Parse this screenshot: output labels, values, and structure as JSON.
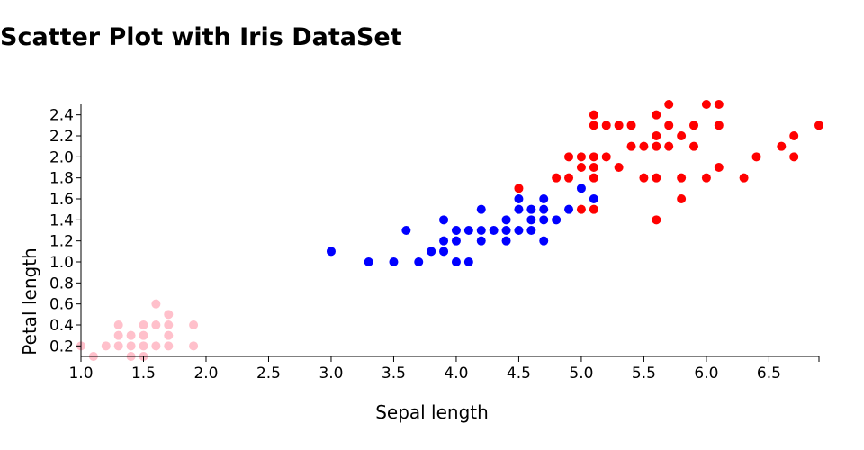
{
  "chart_data": {
    "type": "scatter",
    "title": "Scatter Plot with Iris DataSet",
    "xlabel": "Sepal length",
    "ylabel": "Petal length",
    "xlim": [
      1.0,
      6.9
    ],
    "ylim": [
      0.1,
      2.5
    ],
    "xticks": [
      "1.0",
      "1.5",
      "2.0",
      "2.5",
      "3.0",
      "3.5",
      "4.0",
      "4.5",
      "5.0",
      "5.5",
      "6.0",
      "6.5"
    ],
    "yticks": [
      "0.2",
      "0.4",
      "0.6",
      "0.8",
      "1.0",
      "1.2",
      "1.4",
      "1.6",
      "1.8",
      "2.0",
      "2.2",
      "2.4"
    ],
    "grid": false,
    "legend": "none",
    "series": [
      {
        "color": "#ffc0cb",
        "points": [
          [
            1.0,
            0.2
          ],
          [
            1.1,
            0.1
          ],
          [
            1.2,
            0.2
          ],
          [
            1.3,
            0.2
          ],
          [
            1.3,
            0.3
          ],
          [
            1.3,
            0.4
          ],
          [
            1.4,
            0.1
          ],
          [
            1.4,
            0.2
          ],
          [
            1.4,
            0.3
          ],
          [
            1.5,
            0.1
          ],
          [
            1.5,
            0.2
          ],
          [
            1.5,
            0.3
          ],
          [
            1.5,
            0.4
          ],
          [
            1.6,
            0.2
          ],
          [
            1.6,
            0.4
          ],
          [
            1.6,
            0.6
          ],
          [
            1.7,
            0.2
          ],
          [
            1.7,
            0.3
          ],
          [
            1.7,
            0.4
          ],
          [
            1.7,
            0.5
          ],
          [
            1.9,
            0.2
          ],
          [
            1.9,
            0.4
          ]
        ]
      },
      {
        "color": "#0000ff",
        "points": [
          [
            3.0,
            1.1
          ],
          [
            3.3,
            1.0
          ],
          [
            3.5,
            1.0
          ],
          [
            3.6,
            1.3
          ],
          [
            3.7,
            1.0
          ],
          [
            3.8,
            1.1
          ],
          [
            3.9,
            1.1
          ],
          [
            3.9,
            1.2
          ],
          [
            3.9,
            1.4
          ],
          [
            4.0,
            1.0
          ],
          [
            4.0,
            1.2
          ],
          [
            4.0,
            1.3
          ],
          [
            4.1,
            1.0
          ],
          [
            4.1,
            1.3
          ],
          [
            4.2,
            1.2
          ],
          [
            4.2,
            1.3
          ],
          [
            4.2,
            1.5
          ],
          [
            4.3,
            1.3
          ],
          [
            4.4,
            1.2
          ],
          [
            4.4,
            1.3
          ],
          [
            4.4,
            1.4
          ],
          [
            4.5,
            1.3
          ],
          [
            4.5,
            1.5
          ],
          [
            4.5,
            1.6
          ],
          [
            4.6,
            1.3
          ],
          [
            4.6,
            1.4
          ],
          [
            4.6,
            1.5
          ],
          [
            4.7,
            1.2
          ],
          [
            4.7,
            1.4
          ],
          [
            4.7,
            1.5
          ],
          [
            4.7,
            1.6
          ],
          [
            4.8,
            1.4
          ],
          [
            4.9,
            1.5
          ],
          [
            5.0,
            1.7
          ],
          [
            5.1,
            1.6
          ]
        ]
      },
      {
        "color": "#ff0000",
        "points": [
          [
            4.5,
            1.7
          ],
          [
            4.8,
            1.8
          ],
          [
            4.9,
            1.8
          ],
          [
            4.9,
            2.0
          ],
          [
            5.0,
            1.5
          ],
          [
            5.0,
            1.9
          ],
          [
            5.0,
            2.0
          ],
          [
            5.1,
            1.5
          ],
          [
            5.1,
            1.8
          ],
          [
            5.1,
            1.9
          ],
          [
            5.1,
            2.0
          ],
          [
            5.1,
            2.3
          ],
          [
            5.1,
            2.4
          ],
          [
            5.2,
            2.0
          ],
          [
            5.2,
            2.3
          ],
          [
            5.3,
            1.9
          ],
          [
            5.3,
            2.3
          ],
          [
            5.4,
            2.1
          ],
          [
            5.4,
            2.3
          ],
          [
            5.5,
            1.8
          ],
          [
            5.5,
            2.1
          ],
          [
            5.6,
            1.4
          ],
          [
            5.6,
            1.8
          ],
          [
            5.6,
            2.1
          ],
          [
            5.6,
            2.2
          ],
          [
            5.6,
            2.4
          ],
          [
            5.7,
            2.1
          ],
          [
            5.7,
            2.3
          ],
          [
            5.7,
            2.5
          ],
          [
            5.8,
            1.6
          ],
          [
            5.8,
            1.8
          ],
          [
            5.8,
            2.2
          ],
          [
            5.9,
            2.1
          ],
          [
            5.9,
            2.3
          ],
          [
            6.0,
            1.8
          ],
          [
            6.0,
            2.5
          ],
          [
            6.1,
            1.9
          ],
          [
            6.1,
            2.3
          ],
          [
            6.1,
            2.5
          ],
          [
            6.3,
            1.8
          ],
          [
            6.4,
            2.0
          ],
          [
            6.6,
            2.1
          ],
          [
            6.7,
            2.0
          ],
          [
            6.7,
            2.2
          ],
          [
            6.9,
            2.3
          ]
        ]
      }
    ]
  }
}
